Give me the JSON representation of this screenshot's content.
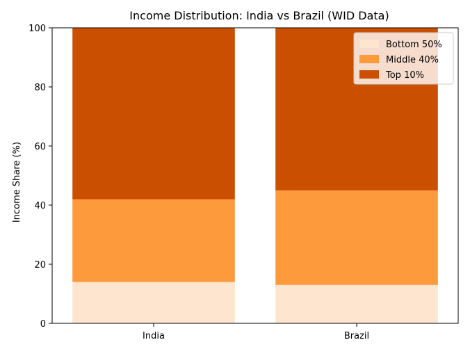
{
  "chart_data": {
    "type": "bar",
    "stacked": true,
    "title": "Income Distribution: India vs Brazil (WID Data)",
    "xlabel": "",
    "ylabel": "Income Share (%)",
    "categories": [
      "India",
      "Brazil"
    ],
    "ylim": [
      0,
      100
    ],
    "yticks": [
      0,
      20,
      40,
      60,
      80,
      100
    ],
    "grid": false,
    "legend_position": "top-right",
    "series": [
      {
        "name": "Bottom 50%",
        "color": "#fde5cf",
        "values": [
          14,
          13
        ]
      },
      {
        "name": "Middle 40%",
        "color": "#fd9a3c",
        "values": [
          28,
          32
        ]
      },
      {
        "name": "Top 10%",
        "color": "#cb4f00",
        "values": [
          58,
          55
        ]
      }
    ]
  }
}
